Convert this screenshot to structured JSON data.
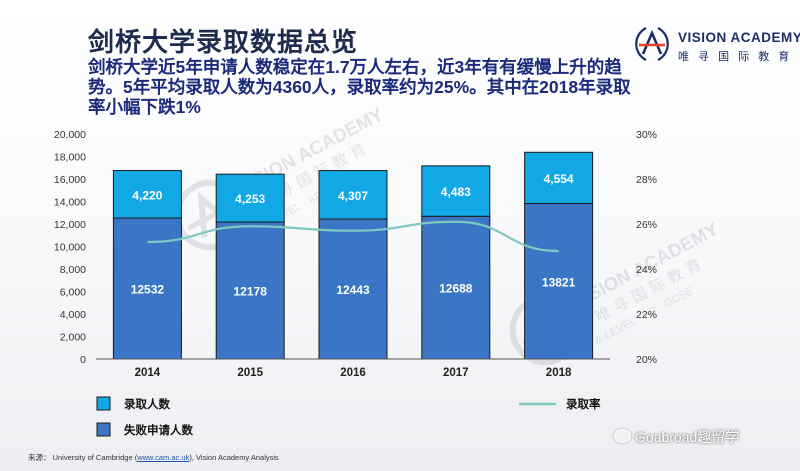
{
  "header": {
    "title": "剑桥大学录取数据总览",
    "subtitle": "剑桥大学近5年申请人数稳定在1.7万人左右，近3年有有缓慢上升的趋势。5年平均录取人数为4360人，录取率约为25%。其中在2018年录取率小幅下跌1%"
  },
  "brand": {
    "name": "VISION ACADEMY",
    "cn": "唯 寻 国 际 教 育"
  },
  "watermark": {
    "line1": "VISION ACADEMY",
    "line2": "唯寻国际教育",
    "line3": "A-LEVEL · AP · GCSE"
  },
  "chart_data": {
    "type": "bar",
    "stacked": true,
    "categories": [
      "2014",
      "2015",
      "2016",
      "2017",
      "2018"
    ],
    "series": [
      {
        "name": "失败申请人数",
        "values": [
          12532,
          12178,
          12443,
          12688,
          13821
        ],
        "color": "#3a76c5"
      },
      {
        "name": "录取人数",
        "values": [
          4220,
          4253,
          4307,
          4483,
          4554
        ],
        "color": "#12a8e6"
      }
    ],
    "line_series": {
      "name": "录取率",
      "values": [
        25.2,
        25.9,
        25.7,
        26.1,
        24.8
      ],
      "color": "#7fc9c0",
      "axis": "right"
    },
    "ylim": [
      0,
      20000
    ],
    "y2lim": [
      20,
      30
    ],
    "yticks": [
      "0",
      "2,000",
      "4,000",
      "6,000",
      "8,000",
      "10,000",
      "12,000",
      "14,000",
      "16,000",
      "18,000",
      "20,000"
    ],
    "y2ticks": [
      "20%",
      "22%",
      "24%",
      "26%",
      "28%",
      "30%"
    ],
    "grid": false,
    "legend_position": "bottom"
  },
  "source": {
    "prefix": "来源： University of Cambridge (",
    "link": "www.cam.ac.uk",
    "suffix": "), Vision Academy Analysis"
  },
  "wechat": {
    "label": "Goabroad趣留学"
  }
}
